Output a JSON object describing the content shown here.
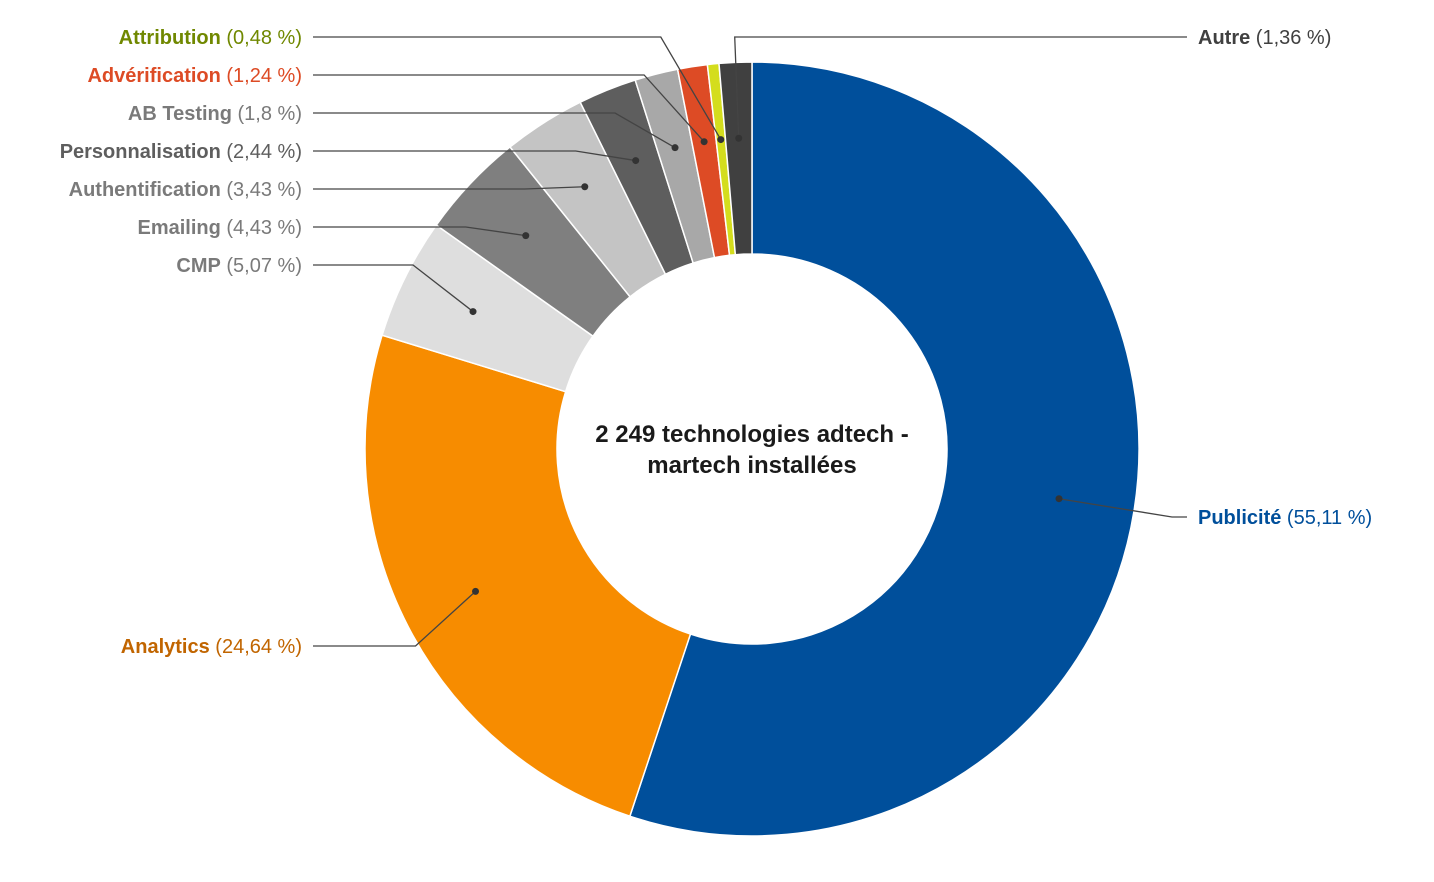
{
  "chart_data": {
    "type": "pie",
    "variant": "donut",
    "center_label": [
      "2 249 technologies adtech -",
      "martech installées"
    ],
    "slices": [
      {
        "name": "Publicité",
        "value": 55.11,
        "value_label": "(55,11 %)",
        "color": "#004f9b",
        "label_color": "#004f9b"
      },
      {
        "name": "Analytics",
        "value": 24.64,
        "value_label": "(24,64 %)",
        "color": "#f78c00",
        "label_color": "#c16500"
      },
      {
        "name": "CMP",
        "value": 5.07,
        "value_label": "(5,07 %)",
        "color": "#dedede",
        "label_color": "#7a7a7a"
      },
      {
        "name": "Emailing",
        "value": 4.43,
        "value_label": "(4,43 %)",
        "color": "#7f7f7f",
        "label_color": "#7a7a7a"
      },
      {
        "name": "Authentification",
        "value": 3.43,
        "value_label": "(3,43 %)",
        "color": "#c4c4c4",
        "label_color": "#7a7a7a"
      },
      {
        "name": "Personnalisation",
        "value": 2.44,
        "value_label": "(2,44 %)",
        "color": "#5e5e5e",
        "label_color": "#5e5e5e"
      },
      {
        "name": "AB Testing",
        "value": 1.8,
        "value_label": "(1,8 %)",
        "color": "#a8a8a8",
        "label_color": "#7a7a7a"
      },
      {
        "name": "Advérification",
        "value": 1.24,
        "value_label": "(1,24 %)",
        "color": "#dd4b25",
        "label_color": "#dd4b25"
      },
      {
        "name": "Attribution",
        "value": 0.48,
        "value_label": "(0,48 %)",
        "color": "#d4dd1d",
        "label_color": "#708800"
      },
      {
        "name": "Autre",
        "value": 1.36,
        "value_label": "(1,36 %)",
        "color": "#404040",
        "label_color": "#404040"
      }
    ]
  }
}
